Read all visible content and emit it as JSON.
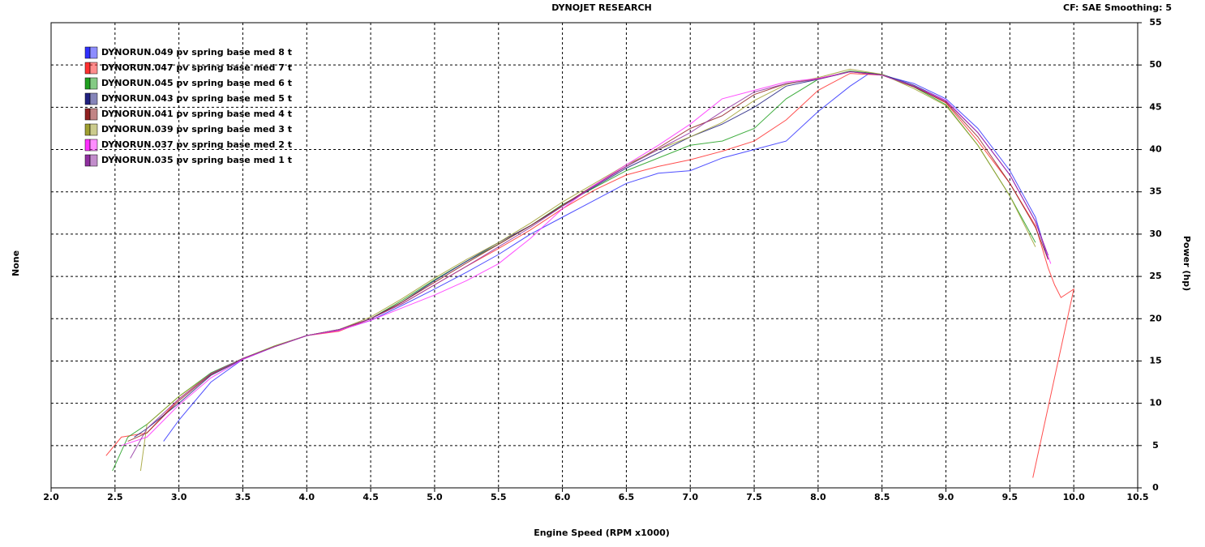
{
  "chart_data": {
    "type": "line",
    "title": "DYNOJET RESEARCH",
    "subtitle": "CF: SAE  Smoothing: 5",
    "x_label": "Engine Speed (RPM x1000)",
    "y_label": "None",
    "y2_label": "Power (hp)",
    "xlim": [
      2.0,
      10.5
    ],
    "xticks": [
      {
        "value": 2,
        "label": "2.0"
      },
      2.5,
      {
        "value": 3,
        "label": "3.0"
      },
      3.5,
      {
        "value": 4,
        "label": "4.0"
      },
      4.5,
      {
        "value": 5,
        "label": "5.0"
      },
      5.5,
      {
        "value": 6,
        "label": "6.0"
      },
      6.5,
      {
        "value": 7,
        "label": "7.0"
      },
      7.5,
      {
        "value": 8,
        "label": "8.0"
      },
      8.5,
      {
        "value": 9,
        "label": "9.0"
      },
      9.5,
      {
        "value": 10,
        "label": "10.0"
      },
      10.5
    ],
    "y2lim": [
      0,
      55
    ],
    "y2ticks": [
      0,
      5,
      10,
      15,
      20,
      25,
      30,
      35,
      40,
      45,
      50,
      55
    ],
    "grid": true,
    "legend": "top-left",
    "series": [
      {
        "name": "DYNORUN.049 pv spring base med 8 t",
        "color": "#3030ff",
        "axis": "y2",
        "x": [
          2.88,
          3.0,
          3.25,
          3.5,
          3.75,
          4.0,
          4.25,
          4.5,
          4.75,
          5.0,
          5.25,
          5.5,
          5.75,
          6.0,
          6.25,
          6.5,
          6.75,
          7.0,
          7.25,
          7.5,
          7.75,
          8.0,
          8.25,
          8.4,
          8.5,
          8.75,
          9.0,
          9.25,
          9.5,
          9.7,
          9.8
        ],
        "values": [
          5.5,
          8.0,
          12.5,
          15.2,
          16.7,
          18.0,
          18.6,
          19.8,
          21.6,
          23.5,
          25.5,
          27.6,
          30.0,
          32.0,
          34.0,
          36.0,
          37.2,
          37.5,
          39.0,
          40.0,
          41.0,
          44.5,
          47.5,
          49.0,
          48.8,
          47.8,
          46.0,
          42.5,
          37.5,
          32.0,
          27.0
        ]
      },
      {
        "name": "DYNORUN.047 pv spring base med 7 t",
        "color": "#ff3030",
        "axis": "y2",
        "x": [
          2.43,
          2.55,
          2.75,
          3.0,
          3.25,
          3.5,
          3.75,
          4.0,
          4.25,
          4.5,
          4.75,
          5.0,
          5.25,
          5.5,
          5.75,
          6.0,
          6.25,
          6.5,
          6.75,
          7.0,
          7.25,
          7.5,
          7.75,
          8.0,
          8.25,
          8.5,
          8.75,
          9.0,
          9.25,
          9.5,
          9.7,
          9.8,
          9.85,
          9.9,
          9.95,
          10.0,
          9.68
        ],
        "values": [
          3.8,
          6.0,
          6.5,
          10.5,
          13.5,
          15.3,
          16.7,
          18.0,
          18.5,
          20.0,
          21.8,
          24.0,
          26.2,
          28.3,
          30.5,
          33.0,
          35.2,
          37.0,
          38.0,
          38.8,
          39.8,
          41.0,
          43.5,
          47.0,
          49.0,
          48.8,
          47.5,
          45.5,
          41.0,
          36.0,
          31.0,
          26.0,
          24.0,
          22.5,
          23.0,
          23.5,
          1.2
        ]
      },
      {
        "name": "DYNORUN.045 pv spring base med 6 t",
        "color": "#20a020",
        "axis": "y2",
        "x": [
          2.48,
          2.6,
          2.75,
          3.0,
          3.25,
          3.5,
          3.75,
          4.0,
          4.25,
          4.5,
          4.75,
          5.0,
          5.25,
          5.5,
          5.75,
          6.0,
          6.25,
          6.5,
          6.75,
          7.0,
          7.25,
          7.5,
          7.75,
          8.0,
          8.25,
          8.5,
          8.75,
          9.0,
          9.25,
          9.5,
          9.7
        ],
        "values": [
          2.0,
          6.0,
          7.5,
          10.8,
          13.6,
          15.3,
          16.8,
          18.0,
          18.7,
          20.0,
          22.2,
          24.6,
          26.8,
          28.8,
          31.0,
          33.5,
          35.5,
          37.5,
          39.0,
          40.5,
          41.0,
          42.5,
          46.0,
          48.3,
          49.3,
          48.9,
          47.4,
          45.3,
          40.5,
          34.5,
          29.0
        ]
      },
      {
        "name": "DYNORUN.043 pv spring base med 5 t",
        "color": "#202080",
        "axis": "y2",
        "x": [
          2.65,
          2.75,
          3.0,
          3.25,
          3.5,
          3.75,
          4.0,
          4.25,
          4.5,
          4.75,
          5.0,
          5.25,
          5.5,
          5.75,
          6.0,
          6.25,
          6.5,
          6.75,
          7.0,
          7.25,
          7.5,
          7.75,
          8.0,
          8.25,
          8.5,
          8.75,
          9.0,
          9.25,
          9.5,
          9.7,
          9.78
        ],
        "values": [
          6.0,
          7.0,
          10.0,
          13.3,
          15.2,
          16.7,
          18.0,
          18.7,
          20.0,
          22.0,
          24.5,
          26.8,
          29.0,
          31.0,
          33.3,
          35.6,
          37.8,
          39.6,
          41.5,
          43.0,
          45.0,
          47.5,
          48.3,
          49.2,
          48.9,
          47.6,
          45.8,
          42.0,
          37.0,
          31.5,
          28.0
        ]
      },
      {
        "name": "DYNORUN.041 pv spring base med 4 t",
        "color": "#902020",
        "axis": "y2",
        "x": [
          2.6,
          2.75,
          3.0,
          3.25,
          3.5,
          3.75,
          4.0,
          4.25,
          4.5,
          4.75,
          5.0,
          5.25,
          5.5,
          5.75,
          6.0,
          6.25,
          6.5,
          6.75,
          7.0,
          7.25,
          7.5,
          7.75,
          8.0,
          8.25,
          8.5,
          8.75,
          9.0,
          9.25,
          9.5,
          9.7,
          9.8
        ],
        "values": [
          5.5,
          6.5,
          10.3,
          13.4,
          15.3,
          16.7,
          18.0,
          18.7,
          20.0,
          22.0,
          24.3,
          26.6,
          28.8,
          31.0,
          33.4,
          35.8,
          38.0,
          40.2,
          42.5,
          44.0,
          46.5,
          47.8,
          48.4,
          49.2,
          48.8,
          47.4,
          45.6,
          41.5,
          36.0,
          30.8,
          27.0
        ]
      },
      {
        "name": "DYNORUN.039 pv spring base med 3 t",
        "color": "#a0a030",
        "axis": "y2",
        "x": [
          2.7,
          2.75,
          3.0,
          3.25,
          3.5,
          3.75,
          4.0,
          4.25,
          4.5,
          4.75,
          5.0,
          5.25,
          5.5,
          5.75,
          6.0,
          6.25,
          6.5,
          6.75,
          7.0,
          7.25,
          7.5,
          7.75,
          8.0,
          8.25,
          8.5,
          8.75,
          9.0,
          9.25,
          9.5,
          9.7
        ],
        "values": [
          2.0,
          7.5,
          10.8,
          13.5,
          15.3,
          16.8,
          18.0,
          18.7,
          20.2,
          22.4,
          24.8,
          27.0,
          29.0,
          31.3,
          33.8,
          36.0,
          38.2,
          40.0,
          41.5,
          43.2,
          45.8,
          47.7,
          48.5,
          49.5,
          48.9,
          47.2,
          45.2,
          40.5,
          34.5,
          28.5
        ]
      },
      {
        "name": "DYNORUN.037 pv spring base med 2 t",
        "color": "#ff30ff",
        "axis": "y2",
        "x": [
          2.55,
          2.75,
          3.0,
          3.25,
          3.5,
          3.75,
          4.0,
          4.25,
          4.5,
          4.75,
          5.0,
          5.25,
          5.5,
          5.75,
          6.0,
          6.25,
          6.5,
          6.75,
          7.0,
          7.25,
          7.5,
          7.75,
          8.0,
          8.25,
          8.5,
          8.75,
          9.0,
          9.25,
          9.5,
          9.7,
          9.82
        ],
        "values": [
          5.0,
          6.0,
          9.8,
          13.0,
          15.2,
          16.7,
          18.0,
          18.6,
          19.8,
          21.3,
          22.8,
          24.5,
          26.5,
          29.5,
          33.0,
          35.8,
          38.2,
          40.5,
          43.0,
          46.0,
          47.0,
          48.0,
          48.4,
          49.2,
          48.8,
          47.5,
          45.8,
          42.0,
          37.0,
          31.5,
          26.5
        ]
      },
      {
        "name": "DYNORUN.035 pv spring base med 1 t",
        "color": "#9030a0",
        "axis": "y2",
        "x": [
          2.62,
          2.75,
          3.0,
          3.25,
          3.5,
          3.75,
          4.0,
          4.25,
          4.5,
          4.75,
          5.0,
          5.25,
          5.5,
          5.75,
          6.0,
          6.25,
          6.5,
          6.75,
          7.0,
          7.25,
          7.5,
          7.75,
          8.0,
          8.25,
          8.5,
          8.75,
          9.0,
          9.25,
          9.5,
          9.7,
          9.8
        ],
        "values": [
          3.5,
          7.0,
          10.5,
          13.5,
          15.3,
          16.7,
          18.0,
          18.7,
          20.0,
          21.8,
          24.0,
          26.2,
          28.5,
          30.8,
          33.3,
          35.7,
          38.0,
          40.0,
          42.0,
          44.5,
          46.8,
          47.8,
          48.3,
          49.2,
          48.8,
          47.5,
          45.7,
          42.0,
          37.0,
          31.5,
          27.5
        ]
      }
    ]
  }
}
